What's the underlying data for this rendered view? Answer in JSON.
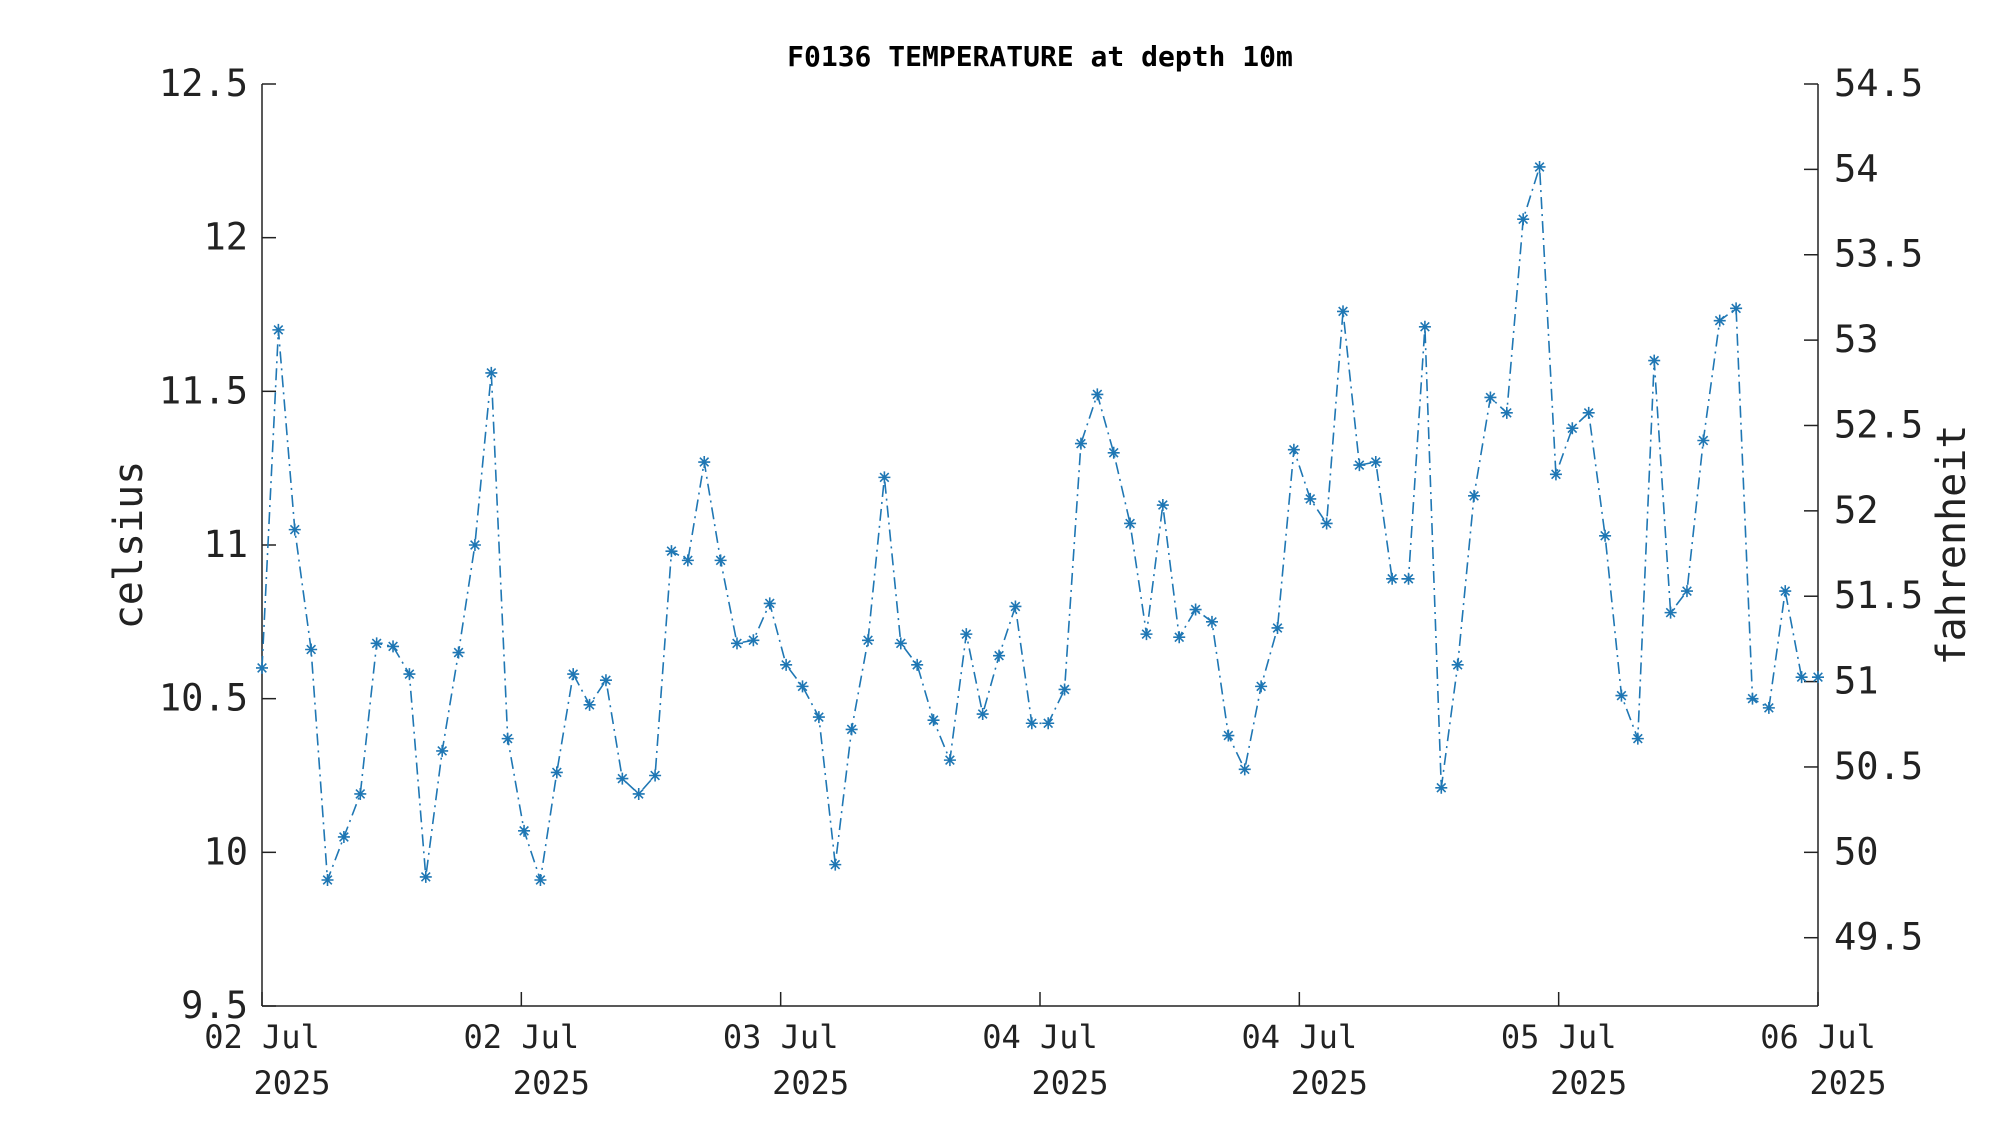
{
  "chart_data": {
    "type": "line",
    "title": "F0136 TEMPERATURE at depth 10m",
    "ylabel": "celsius",
    "y2label": "fahrenheit",
    "ylim": [
      9.5,
      12.5
    ],
    "y2lim": [
      49.1,
      54.5
    ],
    "yticks": [
      "12.5",
      "12",
      "11.5",
      "11",
      "10.5",
      "10",
      "9.5"
    ],
    "y2ticks": [
      "54.5",
      "54",
      "53.5",
      "53",
      "52.5",
      "52",
      "51.5",
      "51",
      "50.5",
      "50",
      "49.5"
    ],
    "xtick_labels": [
      {
        "day": "02 Jul",
        "year": "2025"
      },
      {
        "day": "02 Jul",
        "year": "2025"
      },
      {
        "day": "03 Jul",
        "year": "2025"
      },
      {
        "day": "04 Jul",
        "year": "2025"
      },
      {
        "day": "04 Jul",
        "year": "2025"
      },
      {
        "day": "05 Jul",
        "year": "2025"
      },
      {
        "day": "06 Jul",
        "year": "2025"
      }
    ],
    "marker": "asterisk",
    "line_style": "dash-dot",
    "series": [
      {
        "color": "#1f77b4",
        "values": [
          10.6,
          11.7,
          11.05,
          10.66,
          9.91,
          10.05,
          10.19,
          10.68,
          10.67,
          10.58,
          9.92,
          10.33,
          10.65,
          11.0,
          11.56,
          10.37,
          10.07,
          9.91,
          10.26,
          10.58,
          10.48,
          10.56,
          10.24,
          10.19,
          10.25,
          10.98,
          10.95,
          11.27,
          10.95,
          10.68,
          10.69,
          10.81,
          10.61,
          10.54,
          10.44,
          9.96,
          10.4,
          10.69,
          11.22,
          10.68,
          10.61,
          10.43,
          10.3,
          10.71,
          10.45,
          10.64,
          10.8,
          10.42,
          10.42,
          10.53,
          11.33,
          11.49,
          11.3,
          11.07,
          10.71,
          11.13,
          10.7,
          10.79,
          10.75,
          10.38,
          10.27,
          10.54,
          10.73,
          11.31,
          11.15,
          11.07,
          11.76,
          11.26,
          11.27,
          10.89,
          10.89,
          11.71,
          10.21,
          10.61,
          11.16,
          11.48,
          11.43,
          12.06,
          12.23,
          11.23,
          11.38,
          11.43,
          11.03,
          10.51,
          10.37,
          11.6,
          10.78,
          10.85,
          11.34,
          11.73,
          11.77,
          10.5,
          10.47,
          10.85,
          10.57,
          10.57
        ]
      }
    ]
  }
}
